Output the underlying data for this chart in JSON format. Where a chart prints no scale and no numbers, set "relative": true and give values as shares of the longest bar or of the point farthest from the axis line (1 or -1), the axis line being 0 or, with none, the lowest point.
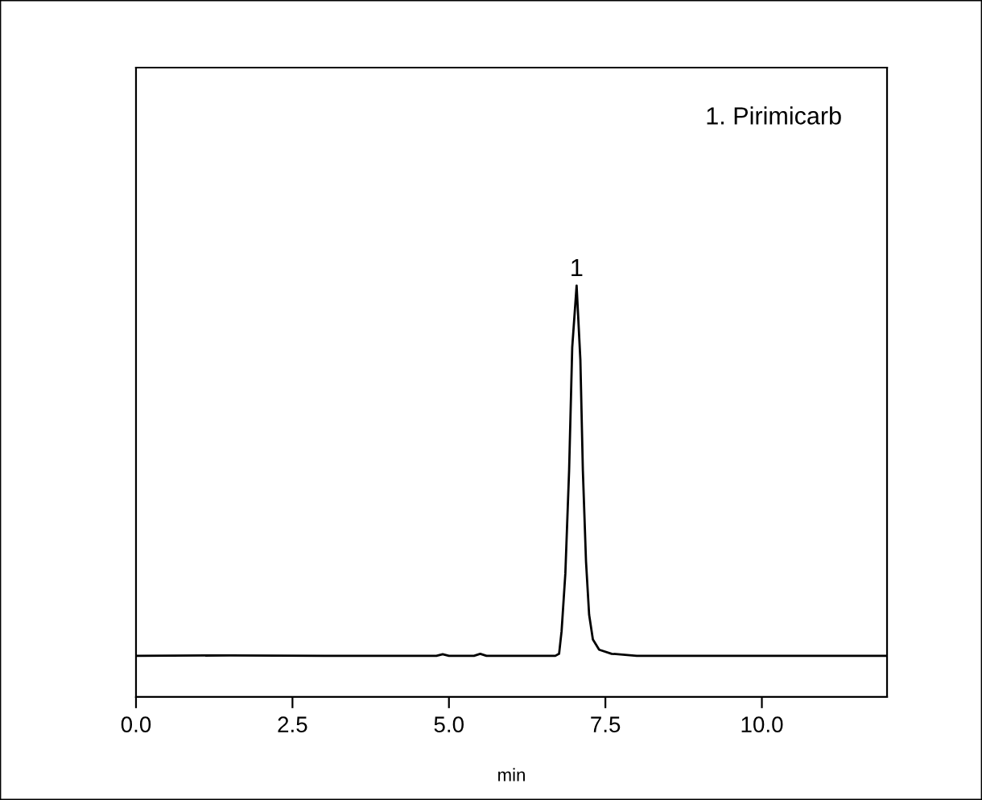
{
  "chart_data": {
    "type": "line",
    "relative": true,
    "xlabel": "min",
    "tick_labels": "x",
    "grid": false,
    "legend": false,
    "marker": "none",
    "line_style": "solid",
    "xlim": [
      0,
      12
    ],
    "xticks": [
      {
        "value": 0,
        "label": "0.0"
      },
      2.5,
      {
        "value": 5,
        "label": "5.0"
      },
      7.5,
      {
        "value": 10,
        "label": "10.0"
      }
    ],
    "annotations": [
      {
        "text": "1",
        "x": 7.04,
        "y": 1.0
      },
      "1. Pirimicarb"
    ],
    "series": [
      {
        "color": "#000000",
        "x": [
          0,
          1.5,
          3.0,
          4.8,
          4.9,
          5.0,
          5.4,
          5.5,
          5.6,
          6.7,
          6.76,
          6.8,
          6.86,
          6.92,
          6.97,
          7.04,
          7.1,
          7.14,
          7.19,
          7.24,
          7.3,
          7.4,
          7.6,
          8.0,
          12.0
        ],
        "values": [
          0.1,
          0.101,
          0.1,
          0.1,
          0.104,
          0.1,
          0.1,
          0.105,
          0.1,
          0.1,
          0.105,
          0.16,
          0.3,
          0.55,
          0.85,
          1.0,
          0.82,
          0.55,
          0.33,
          0.2,
          0.14,
          0.115,
          0.105,
          0.1,
          0.1
        ]
      }
    ]
  }
}
